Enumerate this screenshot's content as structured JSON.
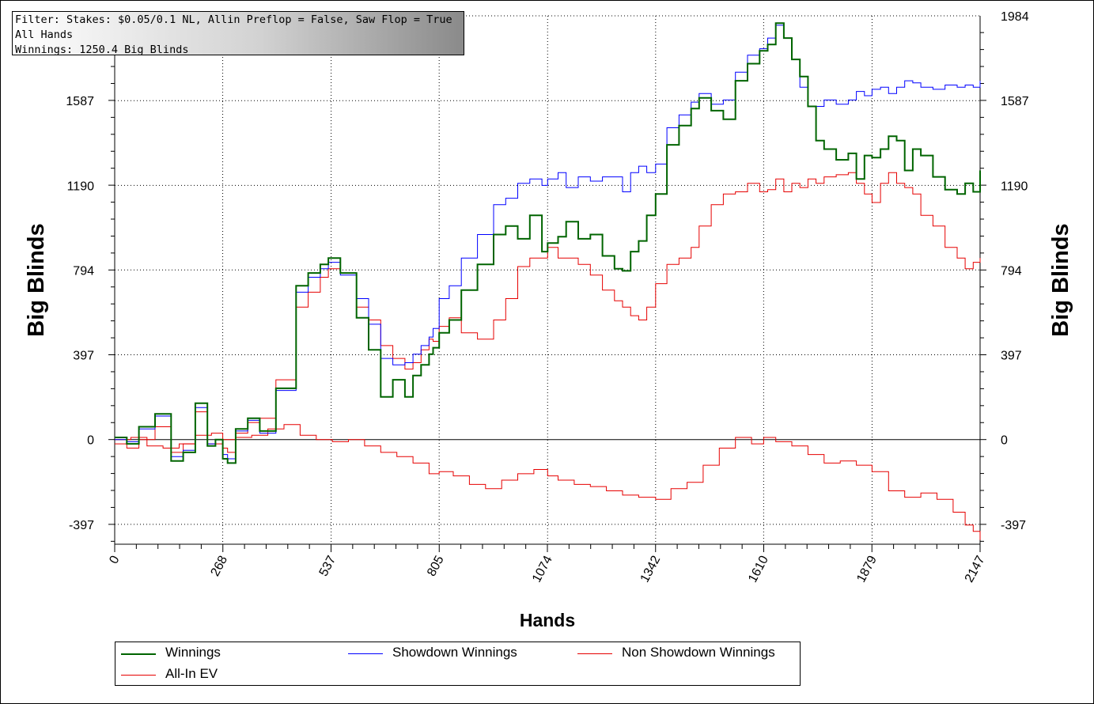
{
  "filter": {
    "line1": "Filter: Stakes: $0.05/0.1 NL, Allin Preflop = False, Saw Flop = True",
    "line2": "All Hands",
    "line3": "Winnings: 1250.4 Big Blinds"
  },
  "chart_data": {
    "type": "line",
    "xlabel": "Hands",
    "ylabel": "Big Blinds",
    "xlim": [
      0,
      2147
    ],
    "ylim": [
      -490,
      1984
    ],
    "x_ticks": [
      0,
      268,
      537,
      805,
      1074,
      1342,
      1610,
      1879,
      2147
    ],
    "y_ticks": [
      -397,
      0,
      397,
      794,
      1190,
      1587,
      1984
    ],
    "grid": true,
    "legend_position": "bottom",
    "series": [
      {
        "name": "Winnings",
        "color": "#006400",
        "x": [
          0,
          30,
          60,
          100,
          140,
          170,
          200,
          230,
          250,
          268,
          280,
          300,
          330,
          360,
          400,
          450,
          480,
          510,
          530,
          560,
          600,
          630,
          660,
          690,
          720,
          740,
          760,
          780,
          790,
          805,
          830,
          860,
          900,
          940,
          970,
          1000,
          1030,
          1060,
          1074,
          1100,
          1120,
          1150,
          1180,
          1210,
          1240,
          1260,
          1280,
          1300,
          1320,
          1342,
          1370,
          1400,
          1430,
          1450,
          1480,
          1510,
          1540,
          1570,
          1600,
          1620,
          1640,
          1660,
          1680,
          1700,
          1720,
          1740,
          1760,
          1790,
          1820,
          1840,
          1860,
          1879,
          1900,
          1920,
          1940,
          1960,
          1980,
          2000,
          2030,
          2060,
          2090,
          2110,
          2130,
          2147
        ],
        "y": [
          10,
          -20,
          60,
          120,
          -100,
          -60,
          170,
          -30,
          0,
          -90,
          -110,
          50,
          100,
          40,
          240,
          720,
          780,
          820,
          850,
          780,
          570,
          420,
          200,
          280,
          200,
          300,
          350,
          400,
          430,
          500,
          560,
          700,
          820,
          960,
          1000,
          940,
          1050,
          880,
          920,
          950,
          1020,
          940,
          960,
          860,
          800,
          790,
          880,
          930,
          1050,
          1150,
          1380,
          1470,
          1550,
          1600,
          1540,
          1500,
          1680,
          1760,
          1820,
          1850,
          1950,
          1880,
          1780,
          1700,
          1560,
          1400,
          1360,
          1310,
          1340,
          1220,
          1330,
          1320,
          1360,
          1420,
          1400,
          1260,
          1360,
          1330,
          1230,
          1170,
          1150,
          1200,
          1160,
          1260
        ]
      },
      {
        "name": "Showdown Winnings",
        "color": "#0000ff",
        "x": [
          0,
          30,
          60,
          100,
          140,
          170,
          200,
          230,
          250,
          268,
          280,
          300,
          330,
          360,
          400,
          450,
          480,
          510,
          530,
          560,
          600,
          630,
          660,
          690,
          720,
          740,
          760,
          780,
          790,
          805,
          830,
          860,
          900,
          940,
          970,
          1000,
          1030,
          1060,
          1074,
          1100,
          1120,
          1150,
          1180,
          1210,
          1240,
          1260,
          1280,
          1300,
          1320,
          1342,
          1370,
          1400,
          1430,
          1450,
          1480,
          1510,
          1540,
          1570,
          1600,
          1620,
          1640,
          1660,
          1680,
          1700,
          1720,
          1740,
          1760,
          1790,
          1820,
          1840,
          1860,
          1879,
          1900,
          1920,
          1940,
          1960,
          1980,
          2000,
          2030,
          2060,
          2090,
          2110,
          2130,
          2147
        ],
        "y": [
          0,
          -10,
          50,
          110,
          -80,
          -50,
          150,
          -20,
          0,
          -70,
          -90,
          40,
          90,
          30,
          230,
          690,
          760,
          800,
          830,
          770,
          660,
          540,
          380,
          350,
          360,
          400,
          440,
          480,
          520,
          660,
          720,
          850,
          960,
          1100,
          1130,
          1200,
          1220,
          1190,
          1220,
          1250,
          1180,
          1230,
          1210,
          1230,
          1230,
          1160,
          1250,
          1280,
          1250,
          1290,
          1460,
          1520,
          1580,
          1620,
          1570,
          1590,
          1720,
          1800,
          1830,
          1880,
          1940,
          1880,
          1780,
          1650,
          1560,
          1560,
          1590,
          1570,
          1590,
          1630,
          1610,
          1640,
          1650,
          1620,
          1650,
          1680,
          1670,
          1650,
          1640,
          1660,
          1650,
          1660,
          1650,
          1680
        ]
      },
      {
        "name": "Non Showdown Winnings",
        "color": "#e60000",
        "x": [
          0,
          40,
          80,
          120,
          160,
          200,
          240,
          268,
          300,
          340,
          380,
          420,
          460,
          500,
          540,
          580,
          620,
          660,
          700,
          740,
          780,
          805,
          840,
          880,
          920,
          960,
          1000,
          1040,
          1074,
          1100,
          1140,
          1180,
          1220,
          1260,
          1300,
          1342,
          1380,
          1420,
          1460,
          1500,
          1540,
          1580,
          1610,
          1640,
          1680,
          1720,
          1760,
          1800,
          1840,
          1879,
          1920,
          1960,
          2000,
          2040,
          2080,
          2110,
          2130,
          2147
        ],
        "y": [
          0,
          10,
          -30,
          -40,
          -20,
          20,
          30,
          0,
          10,
          20,
          50,
          70,
          20,
          0,
          -10,
          0,
          -30,
          -60,
          -80,
          -110,
          -160,
          -150,
          -170,
          -210,
          -230,
          -190,
          -160,
          -140,
          -170,
          -190,
          -210,
          -220,
          -240,
          -260,
          -270,
          -280,
          -230,
          -200,
          -120,
          -40,
          10,
          -20,
          10,
          -10,
          -30,
          -70,
          -110,
          -100,
          -120,
          -150,
          -240,
          -270,
          -250,
          -280,
          -340,
          -400,
          -430,
          -470
        ]
      },
      {
        "name": "All-In EV",
        "color": "#e60000",
        "x": [
          0,
          30,
          60,
          100,
          140,
          170,
          200,
          230,
          250,
          268,
          280,
          300,
          330,
          360,
          400,
          450,
          480,
          510,
          530,
          560,
          600,
          630,
          660,
          690,
          720,
          740,
          760,
          780,
          790,
          805,
          830,
          860,
          900,
          940,
          970,
          1000,
          1030,
          1060,
          1074,
          1100,
          1120,
          1150,
          1180,
          1210,
          1240,
          1260,
          1280,
          1300,
          1320,
          1342,
          1370,
          1400,
          1430,
          1450,
          1480,
          1510,
          1540,
          1570,
          1600,
          1620,
          1640,
          1660,
          1680,
          1700,
          1720,
          1740,
          1760,
          1790,
          1820,
          1840,
          1860,
          1879,
          1900,
          1920,
          1940,
          1960,
          1980,
          2000,
          2030,
          2060,
          2090,
          2110,
          2130,
          2147
        ],
        "y": [
          -20,
          -40,
          0,
          60,
          -60,
          -20,
          130,
          -20,
          -20,
          -40,
          -60,
          30,
          80,
          100,
          280,
          620,
          690,
          760,
          800,
          780,
          620,
          560,
          440,
          380,
          330,
          360,
          420,
          470,
          460,
          530,
          570,
          500,
          470,
          560,
          660,
          810,
          850,
          850,
          900,
          850,
          850,
          820,
          770,
          700,
          650,
          620,
          580,
          560,
          620,
          730,
          820,
          850,
          900,
          1000,
          1100,
          1150,
          1160,
          1200,
          1160,
          1170,
          1220,
          1160,
          1200,
          1180,
          1220,
          1200,
          1230,
          1240,
          1250,
          1200,
          1150,
          1110,
          1200,
          1250,
          1200,
          1180,
          1150,
          1050,
          1000,
          900,
          850,
          800,
          830,
          850
        ]
      }
    ]
  },
  "legend": {
    "items": [
      {
        "label": "Winnings",
        "color": "#006400"
      },
      {
        "label": "Showdown Winnings",
        "color": "#0000ff"
      },
      {
        "label": "Non Showdown Winnings",
        "color": "#e60000"
      },
      {
        "label": "All-In EV",
        "color": "#e60000"
      }
    ]
  }
}
